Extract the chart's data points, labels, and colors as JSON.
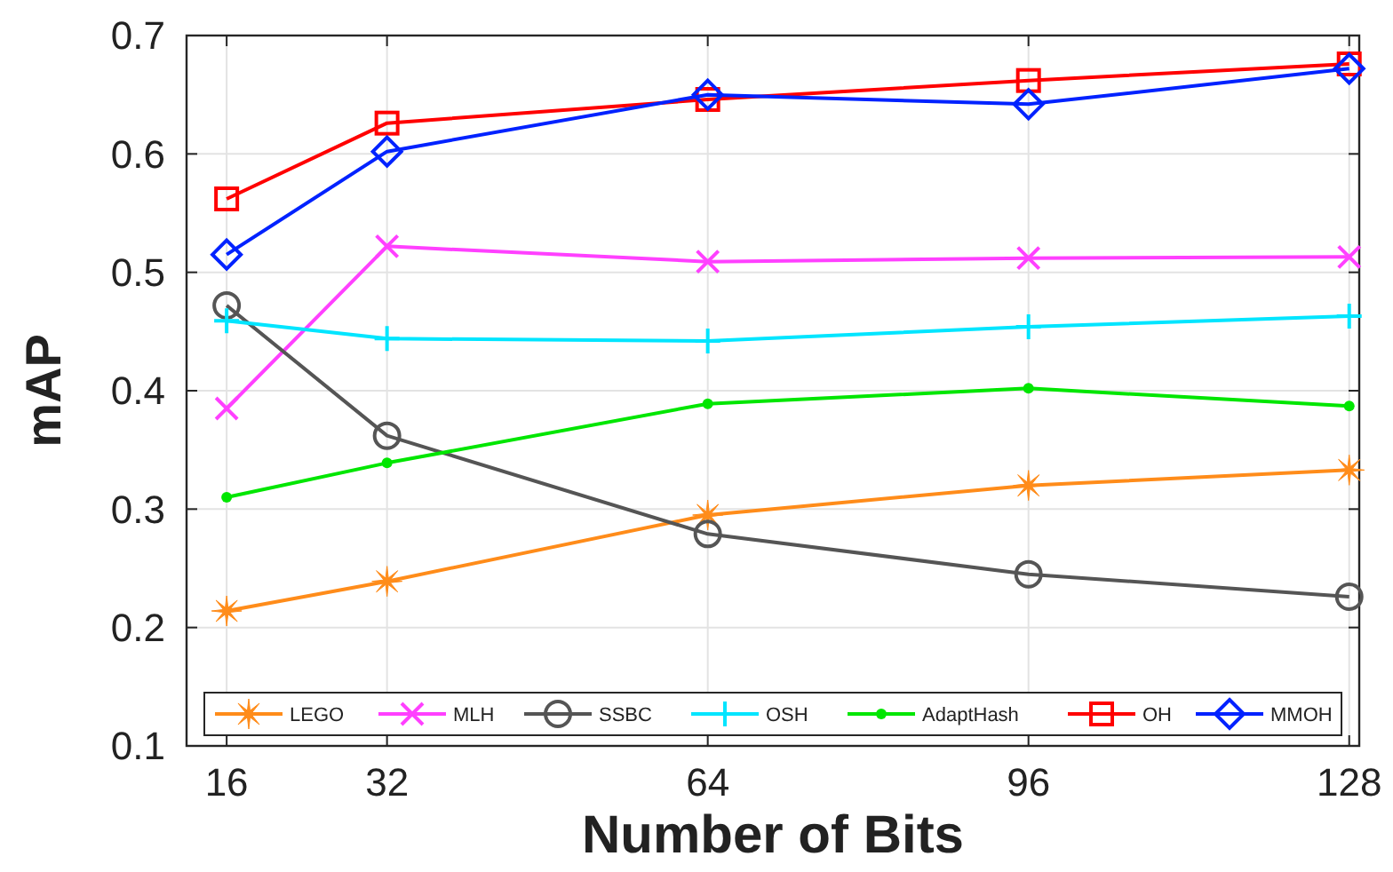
{
  "chart_data": {
    "type": "line",
    "xlabel": "Number of Bits",
    "ylabel": "mAP",
    "x": [
      16,
      32,
      64,
      96,
      128
    ],
    "xlim": [
      12,
      129
    ],
    "xticks": [
      16,
      32,
      64,
      96,
      128
    ],
    "ylim": [
      0.1,
      0.7
    ],
    "yticks": [
      0.1,
      0.2,
      0.3,
      0.4,
      0.5,
      0.6,
      0.7
    ],
    "grid": true,
    "legend": "bottom",
    "series": [
      {
        "name": "LEGO",
        "color": "#ff8c1a",
        "marker": "star",
        "values": [
          0.214,
          0.239,
          0.295,
          0.32,
          0.333
        ]
      },
      {
        "name": "MLH",
        "color": "#ff40ff",
        "marker": "cross",
        "values": [
          0.385,
          0.522,
          0.509,
          0.512,
          0.513
        ]
      },
      {
        "name": "SSBC",
        "color": "#555555",
        "marker": "circle",
        "values": [
          0.472,
          0.362,
          0.279,
          0.245,
          0.226
        ]
      },
      {
        "name": "OSH",
        "color": "#00e5ff",
        "marker": "plus",
        "values": [
          0.459,
          0.444,
          0.442,
          0.454,
          0.463
        ]
      },
      {
        "name": "AdaptHash",
        "color": "#00e600",
        "marker": "dot",
        "values": [
          0.31,
          0.339,
          0.389,
          0.402,
          0.387
        ]
      },
      {
        "name": "OH",
        "color": "#ff0000",
        "marker": "square",
        "values": [
          0.562,
          0.626,
          0.646,
          0.662,
          0.676
        ]
      },
      {
        "name": "MMOH",
        "color": "#0022ff",
        "marker": "diamond",
        "values": [
          0.515,
          0.602,
          0.65,
          0.642,
          0.672
        ]
      }
    ]
  }
}
